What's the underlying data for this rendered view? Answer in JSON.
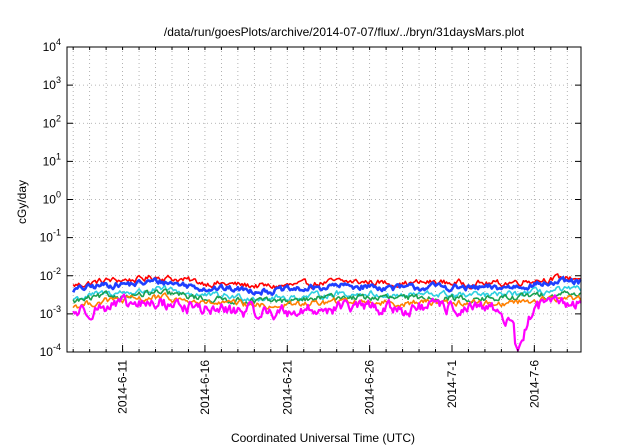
{
  "chart_data": {
    "type": "line",
    "title": "/data/run/goesPlots/archive/2014-07-07/flux/../bryn/31daysMars.plot",
    "xlabel": "Coordinated Universal Time (UTC)",
    "ylabel": "cGy/day",
    "yscale": "log",
    "ylim": [
      0.0001,
      10000
    ],
    "xlim": [
      "2014-06-07T15:00",
      "2014-07-08T20:00"
    ],
    "grid": true,
    "legend": "none",
    "y_ticks": [
      {
        "value": 0.0001,
        "base": "10",
        "exp": "-4"
      },
      {
        "value": 0.001,
        "base": "10",
        "exp": "-3"
      },
      {
        "value": 0.01,
        "base": "10",
        "exp": "-2"
      },
      {
        "value": 0.1,
        "base": "10",
        "exp": "-1"
      },
      {
        "value": 1,
        "base": "10",
        "exp": "0"
      },
      {
        "value": 10,
        "base": "10",
        "exp": "1"
      },
      {
        "value": 100,
        "base": "10",
        "exp": "2"
      },
      {
        "value": 1000,
        "base": "10",
        "exp": "3"
      },
      {
        "value": 10000,
        "base": "10",
        "exp": "4"
      }
    ],
    "x_ticks": [
      {
        "value": "2014-06-11",
        "label": "2014-6-11"
      },
      {
        "value": "2014-06-16",
        "label": "2014-6-16"
      },
      {
        "value": "2014-06-21",
        "label": "2014-6-21"
      },
      {
        "value": "2014-06-26",
        "label": "2014-6-26"
      },
      {
        "value": "2014-07-01",
        "label": "2014-7-1"
      },
      {
        "value": "2014-07-06",
        "label": "2014-7-6"
      }
    ],
    "series": [
      {
        "color": "#ff0000",
        "x": [
          "2014-06-08",
          "2014-06-10",
          "2014-06-12",
          "2014-06-13",
          "2014-06-14",
          "2014-06-16",
          "2014-06-18",
          "2014-06-20",
          "2014-06-22",
          "2014-06-24",
          "2014-06-26",
          "2014-06-28",
          "2014-06-30",
          "2014-07-02",
          "2014-07-04",
          "2014-07-06",
          "2014-07-08"
        ],
        "values": [
          0.0055,
          0.0075,
          0.008,
          0.0095,
          0.0085,
          0.0065,
          0.0058,
          0.0052,
          0.0058,
          0.007,
          0.0068,
          0.0062,
          0.0068,
          0.0062,
          0.0063,
          0.0078,
          0.0088
        ]
      },
      {
        "color": "#1f3fff",
        "x": [
          "2014-06-08",
          "2014-06-10",
          "2014-06-12",
          "2014-06-13",
          "2014-06-14",
          "2014-06-16",
          "2014-06-18",
          "2014-06-20",
          "2014-06-22",
          "2014-06-24",
          "2014-06-26",
          "2014-06-28",
          "2014-06-30",
          "2014-07-02",
          "2014-07-04",
          "2014-07-06",
          "2014-07-08"
        ],
        "values": [
          0.0042,
          0.0058,
          0.0062,
          0.0072,
          0.0065,
          0.0048,
          0.0044,
          0.004,
          0.0044,
          0.0054,
          0.0052,
          0.0047,
          0.0052,
          0.0047,
          0.0048,
          0.006,
          0.0068
        ]
      },
      {
        "color": "#2ecfe0",
        "x": [
          "2014-06-08",
          "2014-06-10",
          "2014-06-12",
          "2014-06-13",
          "2014-06-14",
          "2014-06-16",
          "2014-06-18",
          "2014-06-20",
          "2014-06-22",
          "2014-06-24",
          "2014-06-26",
          "2014-06-28",
          "2014-06-30",
          "2014-07-02",
          "2014-07-04",
          "2014-07-06",
          "2014-07-08"
        ],
        "values": [
          0.0025,
          0.0035,
          0.0038,
          0.0043,
          0.004,
          0.003,
          0.0028,
          0.0026,
          0.0028,
          0.0034,
          0.0033,
          0.003,
          0.0033,
          0.003,
          0.0031,
          0.0037,
          0.0042
        ]
      },
      {
        "color": "#1aa050",
        "x": [
          "2014-06-08",
          "2014-06-10",
          "2014-06-12",
          "2014-06-13",
          "2014-06-14",
          "2014-06-16",
          "2014-06-18",
          "2014-06-20",
          "2014-06-22",
          "2014-06-24",
          "2014-06-26",
          "2014-06-28",
          "2014-06-30",
          "2014-07-02",
          "2014-07-04",
          "2014-07-06",
          "2014-07-08"
        ],
        "values": [
          0.0021,
          0.0029,
          0.0031,
          0.0035,
          0.0033,
          0.0025,
          0.0023,
          0.0021,
          0.0023,
          0.0028,
          0.0027,
          0.0025,
          0.0027,
          0.0025,
          0.0025,
          0.003,
          0.0034
        ]
      },
      {
        "color": "#ff7f00",
        "x": [
          "2014-06-08",
          "2014-06-10",
          "2014-06-12",
          "2014-06-13",
          "2014-06-14",
          "2014-06-16",
          "2014-06-18",
          "2014-06-20",
          "2014-06-22",
          "2014-06-24",
          "2014-06-26",
          "2014-06-28",
          "2014-06-30",
          "2014-07-02",
          "2014-07-04",
          "2014-07-06",
          "2014-07-08"
        ],
        "values": [
          0.0016,
          0.0022,
          0.0024,
          0.0027,
          0.0025,
          0.0019,
          0.0018,
          0.0016,
          0.0018,
          0.0021,
          0.0021,
          0.0019,
          0.0021,
          0.0019,
          0.0019,
          0.0023,
          0.0026
        ]
      },
      {
        "color": "#ff00ff",
        "x": [
          "2014-06-08",
          "2014-06-10",
          "2014-06-12",
          "2014-06-13",
          "2014-06-14",
          "2014-06-16",
          "2014-06-18",
          "2014-06-20",
          "2014-06-22",
          "2014-06-24",
          "2014-06-26",
          "2014-06-28",
          "2014-06-30",
          "2014-07-02",
          "2014-07-04",
          "2014-07-05",
          "2014-07-06",
          "2014-07-08"
        ],
        "values": [
          0.0011,
          0.0016,
          0.0017,
          0.0019,
          0.0018,
          0.0013,
          0.0012,
          0.0011,
          0.0012,
          0.0015,
          0.0015,
          0.0013,
          0.0015,
          0.0013,
          0.0013,
          0.00011,
          0.0016,
          0.0019
        ]
      }
    ]
  }
}
